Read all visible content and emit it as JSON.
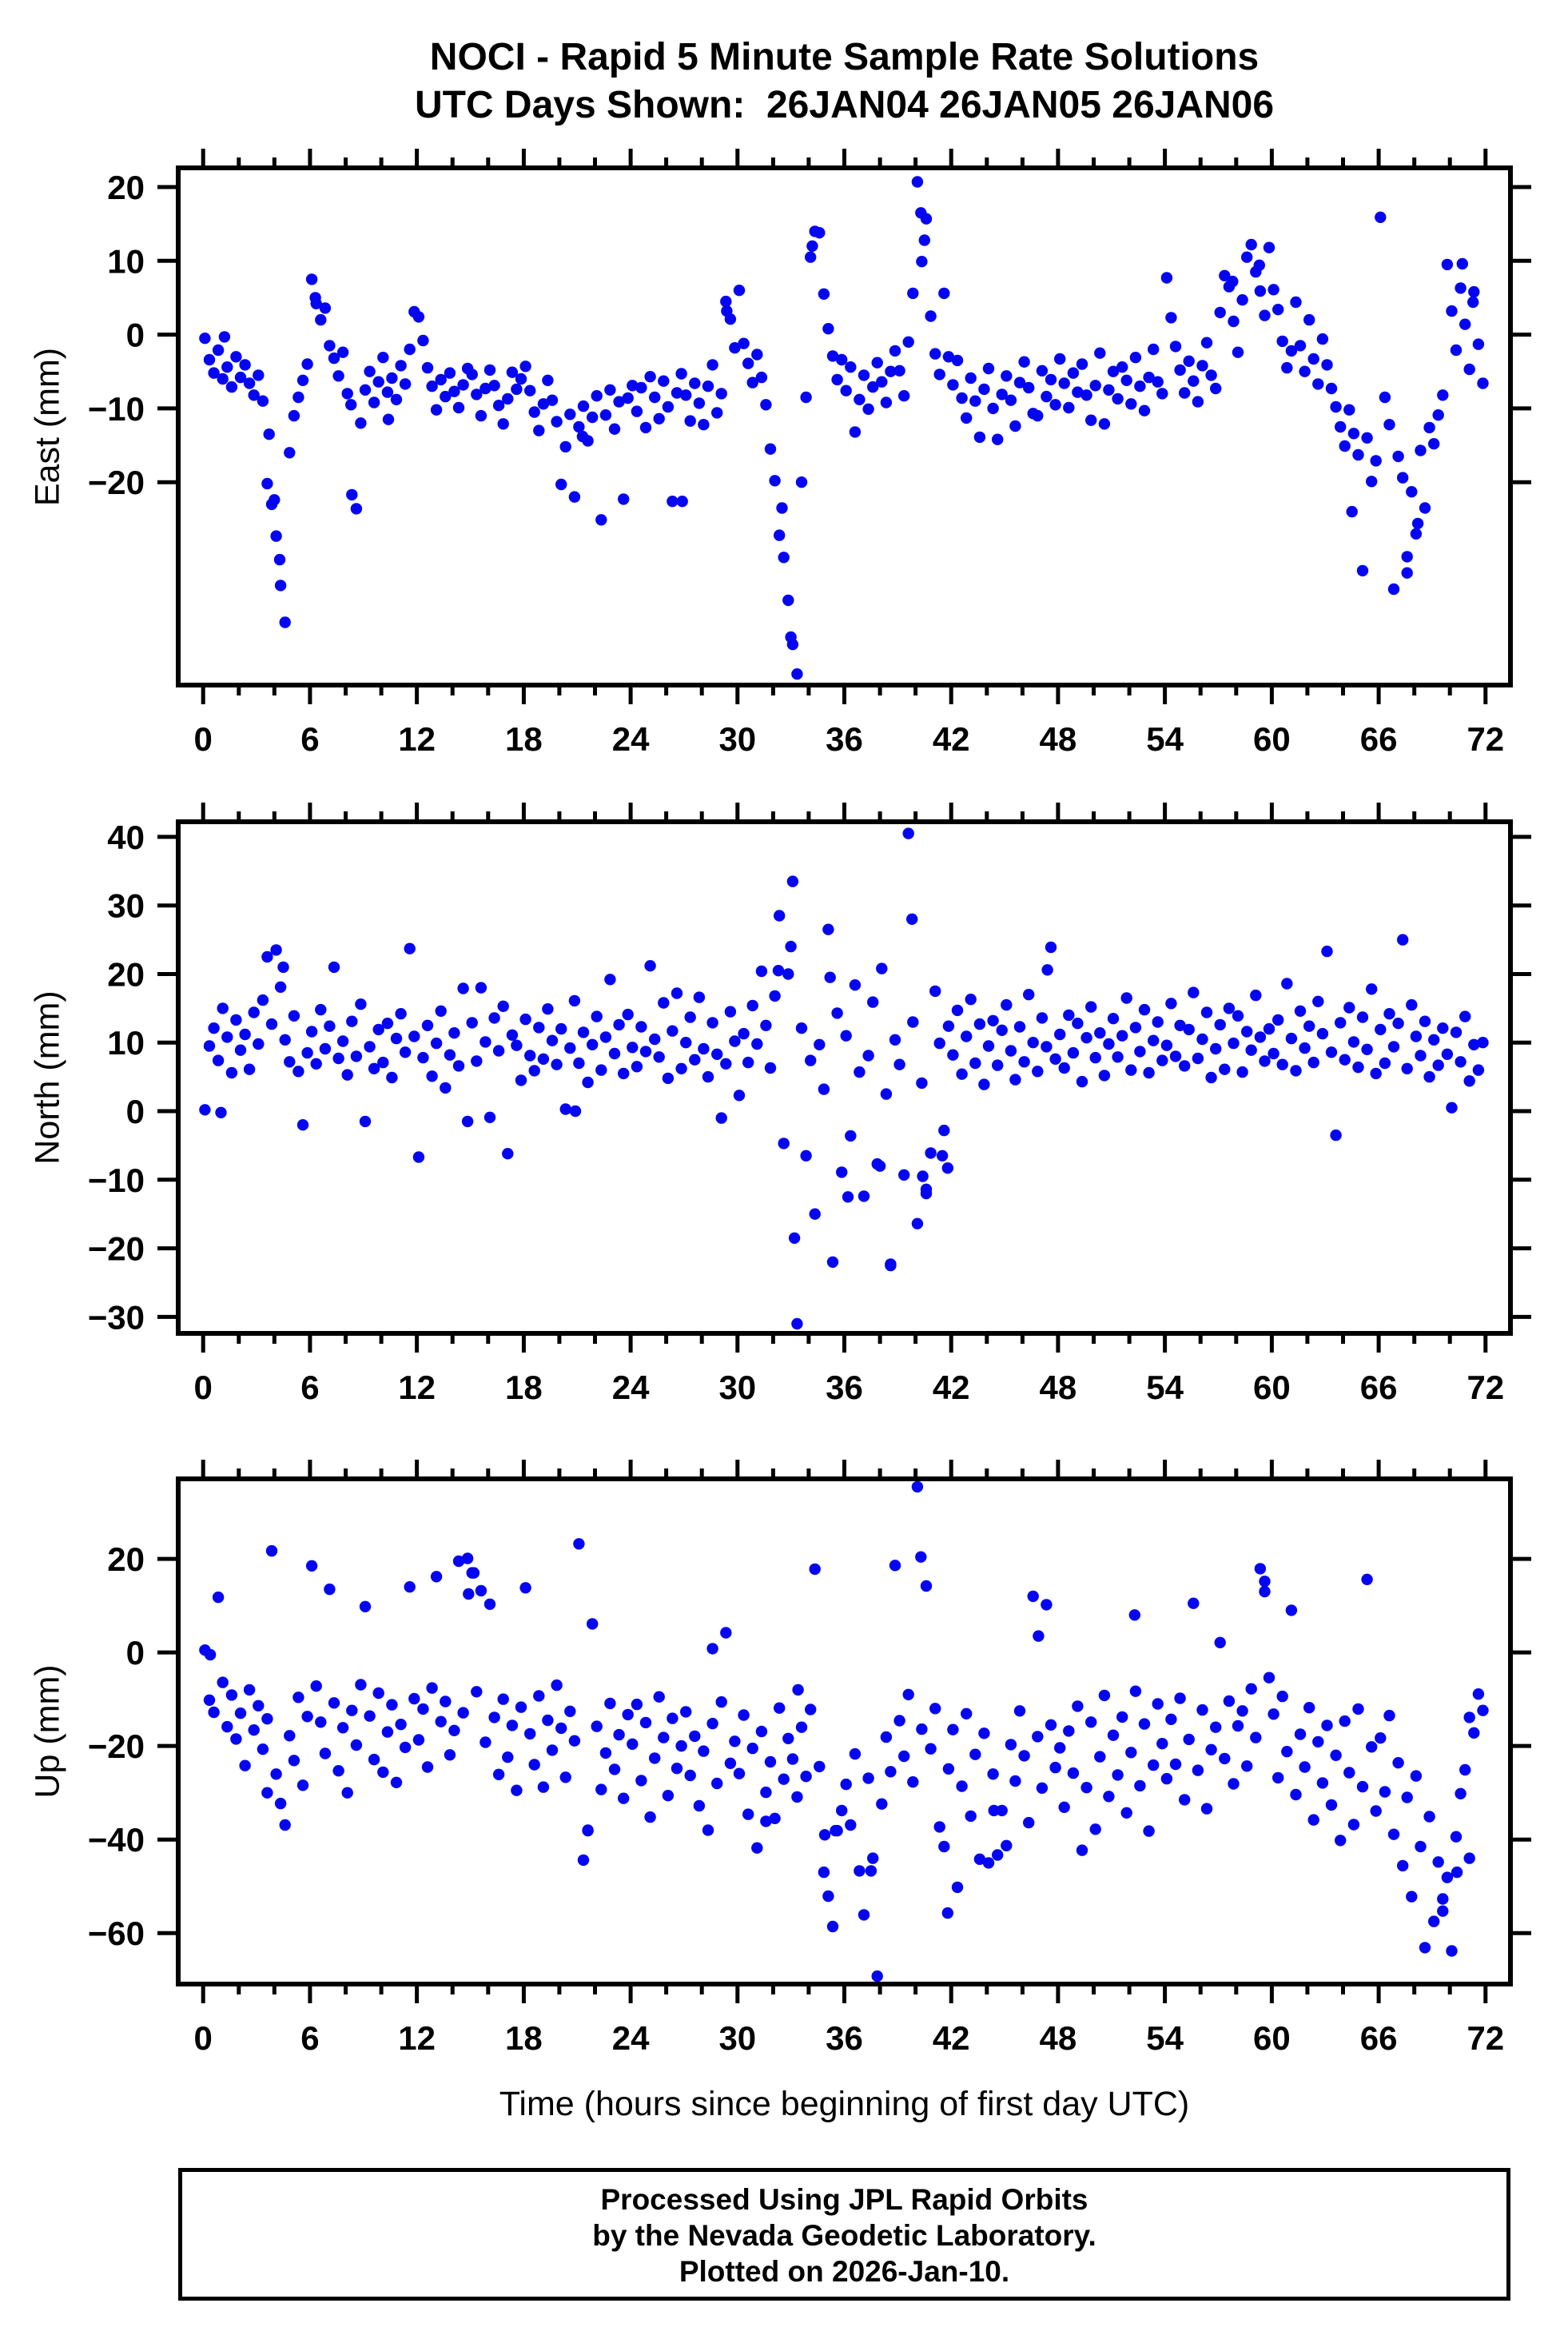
{
  "title": {
    "line1": "NOCI - Rapid 5 Minute Sample Rate Solutions",
    "line2": "UTC Days Shown:  26JAN04 26JAN05 26JAN06"
  },
  "footer": {
    "line1": "Processed Using JPL Rapid Orbits",
    "line2": "by the Nevada Geodetic Laboratory.",
    "line3": "Plotted on 2026-Jan-10."
  },
  "style": {
    "point_color": "#0505f2",
    "frame_color": "#000000"
  },
  "xaxis": {
    "label": "Time (hours since beginning of first day UTC)",
    "range": [
      -1.4,
      73.4
    ],
    "major_ticks": [
      0,
      6,
      12,
      18,
      24,
      30,
      36,
      42,
      48,
      54,
      60,
      66,
      72
    ],
    "minor_step": 2
  },
  "chart_data": [
    {
      "type": "scatter",
      "name": "east",
      "ylabel": "East (mm)",
      "ylim": [
        -47.5,
        22.6
      ],
      "yticks": [
        -20,
        -10,
        0,
        10,
        20
      ],
      "x_start": 0.1,
      "x_step": 0.25,
      "y_values": [
        -0.5,
        -3.4,
        -5.2,
        -2.1,
        -6.0,
        -4.4,
        -7.1,
        -3.0,
        -5.8,
        -4.1,
        -6.6,
        -8.2,
        -5.5,
        -9.0,
        -20.2,
        -23.0,
        -27.3,
        -34.0,
        -39.0,
        -16.0,
        -11.0,
        -8.5,
        -6.2,
        -4.0,
        7.5,
        4.2,
        2.0,
        3.6,
        -1.5,
        -3.2,
        -5.6,
        -2.4,
        -8.0,
        -21.7,
        -23.6,
        -12.0,
        -7.5,
        -5.0,
        -9.2,
        -6.4,
        -3.1,
        -7.8,
        -5.9,
        -8.8,
        -4.2,
        -6.7,
        -2.0,
        3.1,
        2.4,
        -0.8,
        -4.5,
        -7.0,
        -10.2,
        -6.1,
        -8.4,
        -5.2,
        -7.7,
        -9.9,
        -6.8,
        -4.6,
        -5.4,
        -8.1,
        -11.0,
        -7.3,
        -4.8,
        -6.9,
        -9.6,
        -12.1,
        -8.7,
        -5.1,
        -7.4,
        -6.0,
        -4.3,
        -7.6,
        -10.5,
        -13.0,
        -9.4,
        -6.2,
        -8.9,
        -11.8,
        -20.3,
        -15.2,
        -10.8,
        -22.0,
        -12.5,
        -9.7,
        -14.4,
        -11.2,
        -8.3,
        -25.1,
        -10.9,
        -7.5,
        -12.8,
        -9.1,
        -22.3,
        -8.6,
        -6.9,
        -10.4,
        -7.2,
        -12.6,
        -5.7,
        -8.5,
        -11.4,
        -6.3,
        -9.8,
        -22.6,
        -7.9,
        -5.3,
        -8.2,
        -11.7,
        -6.6,
        -9.3,
        -12.2,
        -7.0,
        -4.1,
        -10.6,
        -8.0,
        4.5,
        2.1,
        -1.8,
        6.0,
        -1.2,
        -3.9,
        -6.5,
        -2.7,
        -5.8,
        -9.5,
        -15.5,
        -19.8,
        -27.2,
        -30.2,
        -36.0,
        -42.0,
        -46.0,
        -20.0,
        -8.5,
        10.5,
        14.0,
        13.8,
        5.5,
        0.8,
        -2.9,
        -6.1,
        -3.4,
        -7.6,
        -4.4,
        -13.2,
        -8.8,
        -5.5,
        -10.1,
        -7.1,
        -3.8,
        -6.4,
        -9.2,
        -5.0,
        -2.2,
        -4.9,
        -8.3,
        -1.0,
        5.6,
        20.7,
        9.9,
        15.7,
        2.5,
        -2.6,
        -5.4,
        5.6,
        -3.0,
        -6.8,
        -3.5,
        -8.6,
        -11.3,
        -5.9,
        -9.0,
        -13.9,
        -7.4,
        -4.6,
        -10.0,
        -14.2,
        -8.1,
        -5.6,
        -8.9,
        -12.4,
        -6.5,
        -3.7,
        -7.2,
        -10.7,
        -11.0,
        -4.9,
        -8.4,
        -6.1,
        -9.5,
        -3.3,
        -6.6,
        -9.9,
        -5.2,
        -7.8,
        -4.0,
        -8.2,
        -11.6,
        -6.9,
        -2.5,
        -12.1,
        -7.5,
        -5.0,
        -8.7,
        -4.4,
        -6.2,
        -9.4,
        -3.1,
        -7.0,
        -10.3,
        -5.8,
        -2.0,
        -6.4,
        -8.0,
        7.7,
        2.3,
        -1.6,
        -4.8,
        -7.9,
        -3.6,
        -6.3,
        -9.1,
        -4.2,
        -1.1,
        -5.5,
        -7.3,
        3.0,
        8.0,
        6.5,
        1.8,
        -2.4,
        4.7,
        10.5,
        12.2,
        8.5,
        5.9,
        2.6,
        11.8,
        6.1,
        3.4,
        -0.9,
        -4.5,
        -2.2,
        4.4,
        -1.5,
        -5.0,
        2.0,
        -3.3,
        -6.7,
        -0.6,
        -4.1,
        -7.3,
        -9.8,
        -12.5,
        -15.1,
        -10.2,
        -13.4,
        -16.3,
        -32.0,
        -14.0,
        -19.9,
        -17.1,
        15.9,
        -8.5,
        -12.2,
        -34.5,
        -16.5,
        -19.4,
        -30.1,
        -21.3,
        -27.0,
        -15.7,
        -23.5,
        -12.6,
        -14.8,
        -10.9,
        -8.2,
        9.5,
        3.2,
        -2.1,
        6.3,
        1.4,
        -4.7,
        5.8,
        -1.3,
        -6.6
      ],
      "outliers": [
        [
          3.7,
          -13.5
        ],
        [
          4.0,
          -22.4
        ],
        [
          4.3,
          -30.5
        ],
        [
          6.3,
          5.0
        ],
        [
          8.3,
          -9.5
        ],
        [
          32.5,
          -23.5
        ],
        [
          33.0,
          -41.0
        ],
        [
          34.2,
          12.0
        ],
        [
          40.3,
          16.5
        ],
        [
          40.5,
          12.8
        ],
        [
          57.8,
          7.2
        ],
        [
          59.3,
          9.4
        ],
        [
          64.5,
          -24.0
        ],
        [
          67.6,
          -32.3
        ],
        [
          68.2,
          -25.6
        ],
        [
          21.3,
          -13.8
        ],
        [
          29.4,
          3.2
        ],
        [
          70.7,
          9.6
        ],
        [
          71.3,
          4.4
        ],
        [
          1.2,
          -0.3
        ],
        [
          10.4,
          -11.5
        ],
        [
          26.9,
          -22.6
        ]
      ]
    },
    {
      "type": "scatter",
      "name": "north",
      "ylabel": "North (mm)",
      "ylim": [
        -32.4,
        42.2
      ],
      "yticks": [
        -30,
        -20,
        -10,
        0,
        10,
        20,
        30,
        40
      ],
      "x_start": 0.1,
      "x_step": 0.25,
      "y_values": [
        0.2,
        9.5,
        12.1,
        7.4,
        15.0,
        10.8,
        5.6,
        13.3,
        8.9,
        11.2,
        6.1,
        14.4,
        9.8,
        16.2,
        22.5,
        12.7,
        23.5,
        18.1,
        10.4,
        7.2,
        13.9,
        5.8,
        -2.0,
        8.5,
        11.6,
        6.9,
        14.8,
        9.1,
        12.4,
        21.0,
        7.7,
        10.2,
        5.3,
        13.1,
        8.0,
        15.6,
        -1.5,
        9.4,
        6.2,
        11.9,
        7.1,
        12.8,
        4.9,
        10.6,
        14.2,
        8.6,
        23.7,
        10.9,
        -6.7,
        7.8,
        12.5,
        5.1,
        9.9,
        14.6,
        3.4,
        8.2,
        11.4,
        6.6,
        17.9,
        -1.5,
        12.9,
        7.3,
        18.0,
        10.1,
        -0.9,
        13.6,
        8.8,
        15.3,
        -6.2,
        11.1,
        9.6,
        4.5,
        13.4,
        8.1,
        5.9,
        12.2,
        7.6,
        14.9,
        10.3,
        6.8,
        12.0,
        0.3,
        9.2,
        16.1,
        7.0,
        11.5,
        4.2,
        9.7,
        13.8,
        6.0,
        10.8,
        19.2,
        8.4,
        12.6,
        5.5,
        14.1,
        9.3,
        6.5,
        12.3,
        8.7,
        21.2,
        10.5,
        7.9,
        15.8,
        4.8,
        11.7,
        17.2,
        6.2,
        10.0,
        13.7,
        7.5,
        16.6,
        9.1,
        5.0,
        12.9,
        8.3,
        -1.0,
        6.9,
        14.5,
        10.2,
        2.3,
        11.3,
        7.1,
        15.4,
        9.8,
        20.4,
        12.5,
        6.3,
        16.8,
        28.5,
        -4.7,
        20.0,
        33.5,
        -31.0,
        12.1,
        -6.5,
        7.4,
        -15.0,
        9.7,
        3.2,
        26.5,
        -22.0,
        14.3,
        -8.9,
        11.0,
        -3.6,
        18.4,
        5.7,
        -12.4,
        8.1,
        15.9,
        -7.7,
        20.8,
        2.5,
        -22.5,
        10.4,
        6.8,
        -9.3,
        40.5,
        13.0,
        -16.4,
        4.1,
        -12.0,
        -6.1,
        17.5,
        9.9,
        -2.8,
        12.4,
        8.2,
        14.7,
        5.4,
        10.9,
        16.3,
        7.0,
        12.7,
        3.9,
        9.5,
        13.2,
        6.7,
        11.8,
        15.5,
        8.8,
        4.6,
        12.3,
        7.2,
        17.0,
        10.0,
        5.8,
        13.6,
        9.4,
        23.9,
        7.6,
        11.2,
        6.3,
        14.0,
        8.5,
        12.8,
        4.3,
        10.7,
        15.2,
        7.8,
        11.4,
        5.2,
        9.8,
        13.5,
        7.9,
        11.0,
        16.5,
        6.0,
        12.2,
        8.7,
        14.8,
        5.6,
        10.3,
        13.0,
        7.4,
        9.6,
        15.7,
        8.0,
        12.5,
        6.6,
        11.9,
        17.3,
        7.7,
        10.5,
        14.4,
        4.9,
        9.1,
        12.6,
        6.1,
        15.0,
        9.9,
        13.9,
        5.7,
        11.6,
        8.9,
        16.9,
        10.8,
        7.3,
        12.0,
        8.4,
        13.3,
        6.8,
        18.6,
        10.6,
        5.9,
        14.6,
        9.2,
        12.4,
        7.1,
        16.0,
        11.3,
        23.3,
        8.6,
        -3.5,
        12.9,
        7.5,
        15.1,
        10.1,
        6.4,
        13.7,
        9.0,
        17.8,
        5.5,
        11.9,
        7.0,
        14.2,
        9.4,
        12.8,
        25.0,
        6.2,
        15.5,
        10.9,
        8.1,
        13.1,
        5.0,
        10.4,
        6.7,
        12.1,
        8.3,
        0.5,
        11.5,
        7.2,
        13.8,
        4.4,
        9.7,
        6.0,
        10.0
      ],
      "outliers": [
        [
          33.0,
          24.0
        ],
        [
          33.2,
          -18.5
        ],
        [
          35.2,
          19.5
        ],
        [
          39.8,
          28.0
        ],
        [
          40.4,
          -9.5
        ],
        [
          40.6,
          -11.4
        ],
        [
          4.5,
          21.0
        ],
        [
          32.3,
          20.5
        ],
        [
          36.2,
          -12.5
        ],
        [
          38.0,
          -8.0
        ],
        [
          41.5,
          -6.5
        ],
        [
          20.9,
          0.0
        ],
        [
          47.4,
          20.6
        ],
        [
          1.0,
          -0.2
        ],
        [
          41.8,
          -8.3
        ],
        [
          38.6,
          -22.3
        ]
      ]
    },
    {
      "type": "scatter",
      "name": "up",
      "ylabel": "Up (mm)",
      "ylim": [
        -70.9,
        37.1
      ],
      "yticks": [
        -60,
        -40,
        -20,
        0,
        20
      ],
      "x_start": 0.1,
      "x_step": 0.25,
      "y_values": [
        0.5,
        -10.2,
        -12.8,
        11.8,
        -6.4,
        -15.9,
        -9.1,
        -18.5,
        -13.0,
        -24.2,
        -8.0,
        -16.6,
        -11.4,
        -20.7,
        -14.2,
        21.7,
        -26.0,
        -32.3,
        -36.9,
        -17.8,
        -23.1,
        -9.6,
        -28.4,
        -13.7,
        18.5,
        -7.2,
        -14.9,
        -21.6,
        13.5,
        -10.8,
        -25.3,
        -16.1,
        -30.0,
        -12.4,
        -19.8,
        -6.9,
        9.8,
        -13.6,
        -22.9,
        -8.7,
        -25.6,
        -17.0,
        -11.2,
        -27.8,
        -15.4,
        -20.3,
        14.0,
        -9.9,
        -18.7,
        -12.1,
        -24.5,
        -7.6,
        16.2,
        -14.8,
        -10.5,
        -21.9,
        -16.7,
        19.5,
        -12.9,
        20.1,
        17.0,
        -8.4,
        13.2,
        -19.2,
        10.3,
        -13.9,
        -26.1,
        -10.0,
        -22.4,
        -15.6,
        -29.5,
        -11.7,
        13.8,
        -17.4,
        -24.0,
        -9.3,
        -28.8,
        -14.5,
        -20.9,
        -7.0,
        -16.2,
        -26.7,
        -12.6,
        -18.9,
        23.2,
        -44.4,
        -38.1,
        6.1,
        -15.8,
        -29.3,
        -21.5,
        -10.9,
        -25.0,
        -17.6,
        -31.2,
        -13.3,
        -19.6,
        -11.1,
        -27.4,
        -15.0,
        -35.2,
        -22.6,
        -9.5,
        -18.2,
        -30.6,
        -14.1,
        -24.8,
        -20.0,
        -12.7,
        -26.3,
        -17.9,
        -32.8,
        -21.1,
        -38.0,
        -15.2,
        -28.0,
        -10.6,
        4.2,
        -23.7,
        -19.0,
        -25.9,
        -13.4,
        -34.6,
        -20.5,
        -41.8,
        -16.9,
        -29.9,
        -23.4,
        -35.5,
        -11.9,
        -27.1,
        -18.4,
        -22.8,
        -30.9,
        -16.0,
        -26.5,
        -12.2,
        17.8,
        -24.4,
        -47.0,
        -52.1,
        -58.6,
        -38.1,
        -33.8,
        -28.2,
        -36.9,
        -21.7,
        -46.7,
        -56.1,
        -26.9,
        -44.0,
        -69.2,
        -32.4,
        -18.1,
        -25.5,
        18.6,
        -14.6,
        -22.2,
        -9.0,
        -27.7,
        35.4,
        -16.4,
        14.2,
        -20.6,
        -12.0,
        -37.3,
        -41.5,
        -24.9,
        -16.5,
        -50.2,
        -28.6,
        -13.1,
        -35.0,
        -21.8,
        -44.2,
        -17.3,
        -45.0,
        -26.0,
        -43.3,
        -33.8,
        -41.3,
        -19.7,
        -27.5,
        -12.5,
        -22.1,
        -36.4,
        12.0,
        -18.0,
        -29.0,
        10.2,
        -15.5,
        -24.6,
        -20.4,
        -33.1,
        -16.8,
        -25.8,
        -11.5,
        -42.3,
        -28.9,
        -14.9,
        -37.8,
        -22.3,
        -9.2,
        -30.8,
        -17.7,
        -26.2,
        -13.8,
        -34.3,
        -21.4,
        -8.3,
        -28.5,
        -15.3,
        -38.2,
        -24.1,
        -11.0,
        -19.5,
        -27.0,
        -14.3,
        -23.9,
        -9.8,
        -31.5,
        -18.6,
        10.5,
        -25.2,
        -12.3,
        -33.4,
        -20.8,
        -16.0,
        2.1,
        -22.7,
        -10.4,
        -28.1,
        -15.7,
        -12.5,
        -24.3,
        -7.8,
        -18.2,
        17.9,
        15.2,
        -5.4,
        -13.2,
        -26.8,
        -9.4,
        -21.2,
        9.0,
        -30.4,
        -17.5,
        -24.5,
        -11.8,
        -35.8,
        -19.1,
        -27.9,
        -15.6,
        -32.6,
        -22.0,
        -40.2,
        -14.7,
        -25.7,
        -36.8,
        -12.1,
        -28.7,
        15.6,
        -20.2,
        -33.9,
        -18.3,
        -29.8,
        -13.5,
        -38.9,
        -23.6,
        -45.6,
        -31.0,
        -52.2,
        -26.4,
        -41.5,
        -63.1,
        -35.1,
        -57.5,
        -44.8,
        -52.7,
        -48.1,
        -63.8,
        -39.4,
        -30.2,
        -25.1,
        -13.9,
        -17.2,
        -8.9,
        -12.4
      ],
      "outliers": [
        [
          0.4,
          -0.5
        ],
        [
          3.6,
          -30.0
        ],
        [
          14.9,
          12.5
        ],
        [
          15.2,
          17.0
        ],
        [
          21.6,
          -38.0
        ],
        [
          31.6,
          -36.1
        ],
        [
          34.9,
          -39.0
        ],
        [
          35.5,
          -38.1
        ],
        [
          41.8,
          -55.7
        ],
        [
          40.3,
          20.4
        ],
        [
          59.6,
          13.0
        ],
        [
          69.6,
          -55.3
        ],
        [
          70.4,
          -47.0
        ],
        [
          71.1,
          -44.0
        ],
        [
          46.9,
          3.5
        ],
        [
          52.3,
          8.0
        ],
        [
          28.6,
          0.8
        ],
        [
          33.4,
          -8.0
        ],
        [
          37.5,
          -46.7
        ],
        [
          44.4,
          -33.8
        ]
      ]
    }
  ]
}
